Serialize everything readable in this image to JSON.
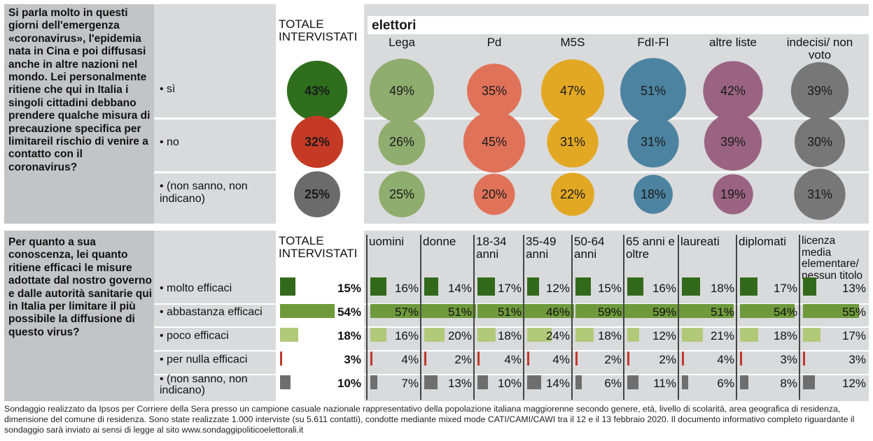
{
  "panel1": {
    "question": "Si parla molto in questi giorni dell'emergenza «coronavirus», l'epidemia nata in Cina e poi diffusasi anche in altre nazioni nel mondo. Lei personalmente ritiene che qui in Italia i singoli cittadini debbano prendere qualche misura di precauzione specifica per limitareil rischio di venire a contatto con il coronavirus?",
    "total_label": "TOTALE INTERVISTATI",
    "group_label": "elettori"
  },
  "panel2": {
    "question": "Per quanto a sua conoscenza, lei quanto ritiene efficaci le misure adottate dal nostro governo e dalle autorità sanitarie qui in Italia per limitare il più possibile la diffusione di questo virus?",
    "total_label": "TOTALE INTERVISTATI"
  },
  "footnote": "Sondaggio realizzato da Ipsos per Corriere della Sera presso un campione casuale nazionale rappresentativo della popolazione italiana maggiorenne secondo genere, età, livello di scolarità, area geografica di residenza, dimensione del comune di residenza. Sono state realizzate 1.000 interviste (su 5.611 contatti), condotte mediante mixed mode CATI/CAMI/CAWI tra il 12 e il 13 febbraio 2020. Il documento informativo completo riguardante il sondaggio sarà inviato ai sensi di legge al sito www.sondaggipoliticoelettorali.it",
  "chart_data": [
    {
      "type": "bubble-table",
      "rows": [
        "• sì",
        "• no",
        "• (non sanno, non indicano)"
      ],
      "columns": [
        "TOTALE INTERVISTATI",
        "Lega",
        "Pd",
        "M5S",
        "FdI-FI",
        "altre liste",
        "indecisi/ non voto"
      ],
      "values": [
        [
          43,
          49,
          35,
          47,
          51,
          42,
          39
        ],
        [
          32,
          26,
          45,
          31,
          31,
          39,
          30
        ],
        [
          25,
          25,
          20,
          22,
          18,
          19,
          31
        ]
      ],
      "colors": {
        "total": [
          "#2e6e1c",
          "#c53a25",
          "#6b6b6b"
        ],
        "columns": [
          "#8fad6e",
          "#e0725a",
          "#e2a823",
          "#4c83a0",
          "#9a6381",
          "#777777"
        ]
      }
    },
    {
      "type": "bar",
      "rows": [
        "• molto efficaci",
        "• abbastanza efficaci",
        "• poco efficaci",
        "• per nulla efficaci",
        "• (non sanno, non indicano)"
      ],
      "columns": [
        "TOTALE INTERVISTATI",
        "uomini",
        "donne",
        "18-34 anni",
        "35-49 anni",
        "50-64 anni",
        "65 anni e oltre",
        "laureati",
        "diplomati",
        "licenza media elementare/ nessun titolo"
      ],
      "values": [
        [
          15,
          16,
          14,
          17,
          12,
          15,
          16,
          18,
          17,
          13
        ],
        [
          54,
          57,
          51,
          51,
          46,
          59,
          59,
          51,
          54,
          55
        ],
        [
          18,
          16,
          20,
          18,
          24,
          18,
          12,
          21,
          18,
          17
        ],
        [
          3,
          4,
          2,
          4,
          4,
          2,
          2,
          4,
          3,
          3
        ],
        [
          10,
          7,
          13,
          10,
          14,
          6,
          11,
          6,
          8,
          12
        ]
      ],
      "colors": [
        "#33691b",
        "#6e9a3c",
        "#b3c97a",
        "#c0392b",
        "#6e6e6e"
      ]
    }
  ]
}
